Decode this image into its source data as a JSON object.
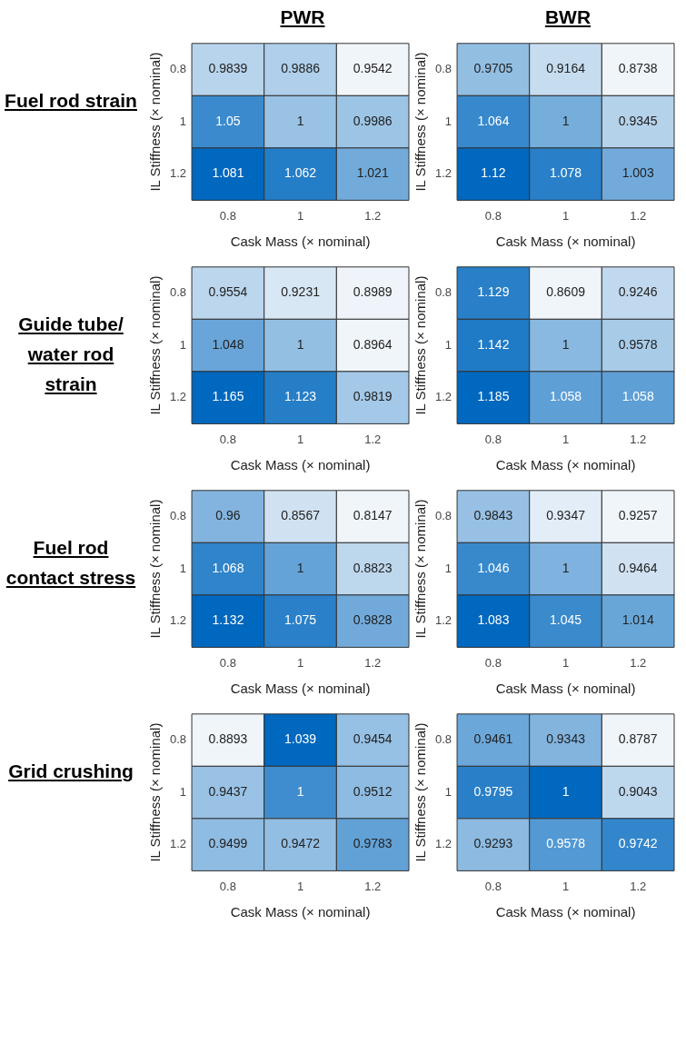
{
  "chart_data": [
    {
      "type": "heatmap",
      "title": "PWR",
      "annotations": [
        "Fuel rod strain"
      ],
      "xlabel": "Cask Mass (× nominal)",
      "ylabel": "IL Stiffness (× nominal)",
      "categories": [
        "0.8",
        "1",
        "1.2"
      ],
      "y_categories": [
        "0.8",
        "1",
        "1.2"
      ],
      "data_labels": true,
      "cells": [
        [
          0.9839,
          0.9886,
          0.9542
        ],
        [
          1.05,
          1,
          0.9986
        ],
        [
          1.081,
          1.062,
          1.021
        ]
      ]
    },
    {
      "type": "heatmap",
      "title": "BWR",
      "xlabel": "Cask Mass (× nominal)",
      "ylabel": "IL Stiffness (× nominal)",
      "categories": [
        "0.8",
        "1",
        "1.2"
      ],
      "y_categories": [
        "0.8",
        "1",
        "1.2"
      ],
      "data_labels": true,
      "cells": [
        [
          0.9705,
          0.9164,
          0.8738
        ],
        [
          1.064,
          1,
          0.9345
        ],
        [
          1.12,
          1.078,
          1.003
        ]
      ]
    },
    {
      "type": "heatmap",
      "annotations": [
        "Guide tube/ water rod strain"
      ],
      "xlabel": "Cask Mass (× nominal)",
      "ylabel": "IL Stiffness (× nominal)",
      "categories": [
        "0.8",
        "1",
        "1.2"
      ],
      "y_categories": [
        "0.8",
        "1",
        "1.2"
      ],
      "data_labels": true,
      "cells": [
        [
          0.9554,
          0.9231,
          0.8989
        ],
        [
          1.048,
          1,
          0.8964
        ],
        [
          1.165,
          1.123,
          0.9819
        ]
      ]
    },
    {
      "type": "heatmap",
      "xlabel": "Cask Mass (× nominal)",
      "ylabel": "IL Stiffness (× nominal)",
      "categories": [
        "0.8",
        "1",
        "1.2"
      ],
      "y_categories": [
        "0.8",
        "1",
        "1.2"
      ],
      "data_labels": true,
      "cells": [
        [
          1.129,
          0.8609,
          0.9246
        ],
        [
          1.142,
          1,
          0.9578
        ],
        [
          1.185,
          1.058,
          1.058
        ]
      ]
    },
    {
      "type": "heatmap",
      "annotations": [
        "Fuel rod contact stress"
      ],
      "xlabel": "Cask Mass (× nominal)",
      "ylabel": "IL Stiffness (× nominal)",
      "categories": [
        "0.8",
        "1",
        "1.2"
      ],
      "y_categories": [
        "0.8",
        "1",
        "1.2"
      ],
      "data_labels": true,
      "cells": [
        [
          0.96,
          0.8567,
          0.8147
        ],
        [
          1.068,
          1,
          0.8823
        ],
        [
          1.132,
          1.075,
          0.9828
        ]
      ]
    },
    {
      "type": "heatmap",
      "xlabel": "Cask Mass (× nominal)",
      "ylabel": "IL Stiffness (× nominal)",
      "categories": [
        "0.8",
        "1",
        "1.2"
      ],
      "y_categories": [
        "0.8",
        "1",
        "1.2"
      ],
      "data_labels": true,
      "cells": [
        [
          0.9843,
          0.9347,
          0.9257
        ],
        [
          1.046,
          1,
          0.9464
        ],
        [
          1.083,
          1.045,
          1.014
        ]
      ]
    },
    {
      "type": "heatmap",
      "annotations": [
        "Grid crushing"
      ],
      "xlabel": "Cask Mass (× nominal)",
      "ylabel": "IL Stiffness (× nominal)",
      "categories": [
        "0.8",
        "1",
        "1.2"
      ],
      "y_categories": [
        "0.8",
        "1",
        "1.2"
      ],
      "data_labels": true,
      "cells": [
        [
          0.8893,
          1.039,
          0.9454
        ],
        [
          0.9437,
          1,
          0.9512
        ],
        [
          0.9499,
          0.9472,
          0.9783
        ]
      ]
    },
    {
      "type": "heatmap",
      "xlabel": "Cask Mass (× nominal)",
      "ylabel": "IL Stiffness (× nominal)",
      "categories": [
        "0.8",
        "1",
        "1.2"
      ],
      "y_categories": [
        "0.8",
        "1",
        "1.2"
      ],
      "data_labels": true,
      "cells": [
        [
          0.9461,
          0.9343,
          0.8787
        ],
        [
          0.9795,
          1,
          0.9043
        ],
        [
          0.9293,
          0.9578,
          0.9742
        ]
      ]
    }
  ]
}
